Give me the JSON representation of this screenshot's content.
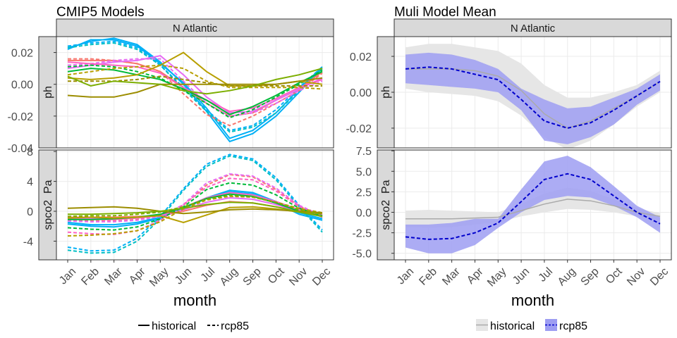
{
  "figure": {
    "left_title": "CMIP5 Models",
    "right_title": "Muli Model Mean",
    "facet_label": "N Atlantic",
    "xlabel": "month",
    "row_labels": [
      "ph",
      "spco2  Pa"
    ],
    "left_legend": [
      {
        "label": "historical",
        "style": "solid"
      },
      {
        "label": "rcp85",
        "style": "dashed"
      }
    ],
    "right_legend": [
      {
        "label": "historical",
        "fill": "#e6e6e6",
        "line": "#aaaaaa"
      },
      {
        "label": "rcp85",
        "fill": "#9d9df2",
        "line": "#0000cc"
      }
    ]
  },
  "chart_data": [
    {
      "type": "line",
      "panel": "CMIP5 Models / N Atlantic / ph",
      "x": [
        "Jan",
        "Feb",
        "Mar",
        "Apr",
        "May",
        "Jun",
        "Jul",
        "Aug",
        "Sep",
        "Oct",
        "Nov",
        "Dec"
      ],
      "ylim": [
        -0.04,
        0.03
      ],
      "yticks": [
        "0.02",
        "0.00",
        "-0.02",
        "-0.04"
      ],
      "ytick_values": [
        0.02,
        0.0,
        -0.02,
        -0.04
      ],
      "grid": true,
      "series": [
        {
          "color": "#00b0f6",
          "style": "solid",
          "values": [
            0.022,
            0.028,
            0.028,
            0.024,
            0.013,
            0.001,
            -0.015,
            -0.034,
            -0.029,
            -0.018,
            -0.003,
            0.011
          ]
        },
        {
          "color": "#00b0f6",
          "style": "solid",
          "values": [
            0.023,
            0.027,
            0.029,
            0.025,
            0.014,
            0.0,
            -0.017,
            -0.036,
            -0.031,
            -0.02,
            -0.005,
            0.01
          ]
        },
        {
          "color": "#00b0f6",
          "style": "dashed",
          "values": [
            0.024,
            0.026,
            0.027,
            0.023,
            0.012,
            -0.002,
            -0.016,
            -0.029,
            -0.026,
            -0.016,
            -0.002,
            0.011
          ]
        },
        {
          "color": "#00bfc4",
          "style": "dashed",
          "values": [
            0.023,
            0.025,
            0.026,
            0.022,
            0.012,
            -0.003,
            -0.017,
            -0.03,
            -0.027,
            -0.018,
            -0.004,
            0.01
          ]
        },
        {
          "color": "#f8766d",
          "style": "solid",
          "values": [
            0.015,
            0.015,
            0.015,
            0.013,
            0.008,
            -0.002,
            -0.012,
            -0.02,
            -0.018,
            -0.01,
            -0.003,
            0.008
          ]
        },
        {
          "color": "#f8766d",
          "style": "dashed",
          "values": [
            0.016,
            0.016,
            0.015,
            0.013,
            0.008,
            -0.006,
            -0.019,
            -0.026,
            -0.02,
            -0.012,
            -0.004,
            0.007
          ]
        },
        {
          "color": "#e76bf3",
          "style": "solid",
          "values": [
            0.01,
            0.012,
            0.014,
            0.015,
            0.018,
            0.006,
            -0.008,
            -0.018,
            -0.017,
            -0.01,
            -0.003,
            0.004
          ]
        },
        {
          "color": "#e76bf3",
          "style": "dashed",
          "values": [
            0.012,
            0.013,
            0.015,
            0.016,
            0.016,
            0.002,
            -0.012,
            -0.02,
            -0.018,
            -0.012,
            -0.004,
            0.002
          ]
        },
        {
          "color": "#ff61c3",
          "style": "solid",
          "values": [
            0.014,
            0.013,
            0.012,
            0.011,
            0.007,
            -0.002,
            -0.01,
            -0.017,
            -0.015,
            -0.009,
            -0.002,
            0.003
          ]
        },
        {
          "color": "#00ba38",
          "style": "solid",
          "values": [
            0.008,
            0.01,
            0.009,
            0.006,
            0.003,
            -0.003,
            -0.01,
            -0.019,
            -0.014,
            -0.007,
            0.001,
            0.008
          ]
        },
        {
          "color": "#00ba38",
          "style": "dashed",
          "values": [
            0.011,
            0.012,
            0.011,
            0.008,
            0.004,
            -0.004,
            -0.012,
            -0.021,
            -0.016,
            -0.008,
            0.0,
            0.009
          ]
        },
        {
          "color": "#b79f00",
          "style": "solid",
          "values": [
            0.004,
            0.003,
            0.004,
            0.006,
            0.012,
            0.02,
            0.008,
            -0.001,
            -0.001,
            0.0,
            0.002,
            0.0
          ]
        },
        {
          "color": "#b79f00",
          "style": "dashed",
          "values": [
            0.006,
            0.008,
            0.01,
            0.011,
            0.012,
            0.01,
            0.002,
            -0.002,
            -0.002,
            -0.002,
            -0.002,
            -0.003
          ]
        },
        {
          "color": "#9c8d00",
          "style": "solid",
          "values": [
            -0.007,
            -0.008,
            -0.008,
            -0.005,
            0.0,
            0.0,
            0.0,
            0.0,
            0.0,
            0.0,
            0.002,
            0.004
          ]
        },
        {
          "color": "#9c8d00",
          "style": "dashed",
          "values": [
            0.002,
            0.002,
            0.002,
            0.003,
            0.005,
            0.003,
            0.001,
            -0.001,
            -0.001,
            -0.001,
            -0.001,
            -0.001
          ]
        },
        {
          "color": "#7cae00",
          "style": "solid",
          "values": [
            0.005,
            -0.001,
            0.002,
            0.001,
            0.0,
            -0.004,
            -0.006,
            -0.004,
            -0.001,
            0.003,
            0.006,
            0.01
          ]
        }
      ]
    },
    {
      "type": "line",
      "panel": "CMIP5 Models / N Atlantic / spco2 Pa",
      "x": [
        "Jan",
        "Feb",
        "Mar",
        "Apr",
        "May",
        "Jun",
        "Jul",
        "Aug",
        "Sep",
        "Oct",
        "Nov",
        "Dec"
      ],
      "ylim": [
        -6.5,
        8.2
      ],
      "yticks": [
        "8",
        "4",
        "0",
        "-4"
      ],
      "ytick_values": [
        8,
        4,
        0,
        -4
      ],
      "grid": true,
      "series": [
        {
          "color": "#00b0f6",
          "style": "solid",
          "values": [
            -1.5,
            -1.8,
            -1.8,
            -1.5,
            -0.8,
            0.5,
            1.8,
            2.8,
            2.5,
            1.3,
            -0.2,
            -1.0
          ]
        },
        {
          "color": "#00b0f6",
          "style": "solid",
          "values": [
            -1.7,
            -2.0,
            -2.1,
            -1.7,
            -0.9,
            0.4,
            1.7,
            2.6,
            2.3,
            1.1,
            -0.4,
            -1.2
          ]
        },
        {
          "color": "#00bfc4",
          "style": "dashed",
          "values": [
            -5.2,
            -5.6,
            -5.5,
            -4.0,
            -1.0,
            2.8,
            6.0,
            7.4,
            6.8,
            4.2,
            0.6,
            -2.8
          ]
        },
        {
          "color": "#00b0f6",
          "style": "dashed",
          "values": [
            -4.8,
            -5.3,
            -5.2,
            -3.6,
            -0.7,
            3.0,
            6.3,
            7.6,
            7.0,
            4.5,
            0.8,
            -2.5
          ]
        },
        {
          "color": "#f8766d",
          "style": "solid",
          "values": [
            -0.8,
            -0.8,
            -0.8,
            -0.7,
            -0.6,
            0.0,
            0.8,
            1.3,
            1.1,
            0.6,
            0.0,
            -0.5
          ]
        },
        {
          "color": "#f8766d",
          "style": "dashed",
          "values": [
            -1.2,
            -1.3,
            -1.3,
            -1.1,
            -0.6,
            0.8,
            3.5,
            4.9,
            4.6,
            2.9,
            0.7,
            -0.7
          ]
        },
        {
          "color": "#e76bf3",
          "style": "solid",
          "values": [
            -1.0,
            -1.0,
            -1.0,
            -0.9,
            -0.6,
            0.2,
            1.2,
            1.8,
            1.6,
            0.9,
            0.0,
            -0.6
          ]
        },
        {
          "color": "#e76bf3",
          "style": "dashed",
          "values": [
            -1.3,
            -1.4,
            -1.4,
            -1.2,
            -0.7,
            0.9,
            3.8,
            5.0,
            4.7,
            3.1,
            0.8,
            -0.6
          ]
        },
        {
          "color": "#ff61c3",
          "style": "solid",
          "values": [
            -1.1,
            -1.1,
            -1.1,
            -0.9,
            -0.5,
            0.5,
            1.8,
            2.5,
            2.2,
            1.3,
            0.2,
            -0.5
          ]
        },
        {
          "color": "#ff61c3",
          "style": "dashed",
          "values": [
            -2.8,
            -3.0,
            -3.1,
            -2.6,
            -1.2,
            0.9,
            3.2,
            4.4,
            4.2,
            2.7,
            0.6,
            -0.8
          ]
        },
        {
          "color": "#00ba38",
          "style": "solid",
          "values": [
            -1.1,
            -1.1,
            -1.0,
            -0.8,
            -0.4,
            0.5,
            1.7,
            2.3,
            2.0,
            1.1,
            0.0,
            -0.7
          ]
        },
        {
          "color": "#00ba38",
          "style": "dashed",
          "values": [
            -2.2,
            -2.4,
            -2.5,
            -2.1,
            -1.0,
            0.6,
            2.9,
            3.8,
            3.5,
            2.2,
            0.4,
            -0.6
          ]
        },
        {
          "color": "#b79f00",
          "style": "solid",
          "values": [
            -0.9,
            -0.8,
            -0.9,
            -0.8,
            -0.6,
            -1.5,
            -0.5,
            0.5,
            0.6,
            0.3,
            -0.1,
            -0.3
          ]
        },
        {
          "color": "#b79f00",
          "style": "dashed",
          "values": [
            -3.3,
            -3.2,
            -3.0,
            -2.6,
            -1.4,
            0.3,
            1.5,
            2.0,
            1.9,
            1.2,
            0.4,
            -0.2
          ]
        },
        {
          "color": "#9c8d00",
          "style": "solid",
          "values": [
            0.4,
            0.5,
            0.6,
            0.4,
            0.0,
            -0.3,
            -0.1,
            0.2,
            0.3,
            0.2,
            0.0,
            -0.2
          ]
        },
        {
          "color": "#7cae00",
          "style": "solid",
          "values": [
            -0.4,
            -0.4,
            -0.3,
            -0.2,
            0.0,
            0.4,
            0.9,
            1.2,
            1.1,
            0.6,
            -0.1,
            -0.7
          ]
        },
        {
          "color": "#7cae00",
          "style": "dashed",
          "values": [
            -0.7,
            -0.6,
            -0.6,
            -0.4,
            -0.1,
            0.6,
            1.6,
            2.1,
            1.9,
            1.2,
            0.2,
            -0.4
          ]
        }
      ]
    },
    {
      "type": "area",
      "panel": "Muli Model Mean / N Atlantic / ph",
      "x": [
        "Jan",
        "Feb",
        "Mar",
        "Apr",
        "May",
        "Jun",
        "Jul",
        "Aug",
        "Sep",
        "Oct",
        "Nov",
        "Dec"
      ],
      "ylim": [
        -0.031,
        0.031
      ],
      "yticks": [
        "0.02",
        "0.00",
        "-0.02"
      ],
      "ytick_values": [
        0.02,
        0.0,
        -0.02
      ],
      "grid": true,
      "series": [
        {
          "name": "historical",
          "style": "solid",
          "line": "#aaaaaa",
          "fill": "#e6e6e6",
          "mean": [
            0.013,
            0.013,
            0.013,
            0.012,
            0.009,
            0.001,
            -0.012,
            -0.02,
            -0.016,
            -0.009,
            -0.002,
            0.006
          ],
          "upper": [
            0.025,
            0.027,
            0.027,
            0.025,
            0.023,
            0.016,
            0.004,
            -0.003,
            -0.003,
            0.0,
            0.004,
            0.012
          ],
          "lower": [
            0.002,
            0.0,
            -0.001,
            -0.002,
            -0.005,
            -0.013,
            -0.025,
            -0.032,
            -0.027,
            -0.018,
            -0.008,
            0.0
          ]
        },
        {
          "name": "rcp85",
          "style": "dashed",
          "line": "#0000cc",
          "fill": "#9d9df2",
          "mean": [
            0.013,
            0.014,
            0.013,
            0.01,
            0.007,
            -0.004,
            -0.016,
            -0.02,
            -0.017,
            -0.01,
            -0.002,
            0.006
          ],
          "upper": [
            0.021,
            0.022,
            0.021,
            0.018,
            0.013,
            0.002,
            -0.004,
            -0.009,
            -0.008,
            -0.003,
            0.002,
            0.01
          ],
          "lower": [
            0.005,
            0.004,
            0.003,
            0.002,
            0.0,
            -0.01,
            -0.027,
            -0.029,
            -0.025,
            -0.018,
            -0.007,
            0.001
          ]
        }
      ]
    },
    {
      "type": "area",
      "panel": "Muli Model Mean / N Atlantic / spco2 Pa",
      "x": [
        "Jan",
        "Feb",
        "Mar",
        "Apr",
        "May",
        "Jun",
        "Jul",
        "Aug",
        "Sep",
        "Oct",
        "Nov",
        "Dec"
      ],
      "ylim": [
        -5.8,
        7.6
      ],
      "yticks": [
        "7.5",
        "5.0",
        "2.5",
        "0.0",
        "-2.5",
        "-5.0"
      ],
      "ytick_values": [
        7.5,
        5.0,
        2.5,
        0.0,
        -2.5,
        -5.0
      ],
      "grid": true,
      "series": [
        {
          "name": "historical",
          "style": "solid",
          "line": "#aaaaaa",
          "fill": "#e6e6e6",
          "mean": [
            -0.8,
            -0.8,
            -0.8,
            -0.7,
            -0.6,
            0.2,
            1.0,
            1.6,
            1.4,
            0.8,
            0.0,
            -0.5
          ],
          "upper": [
            0.2,
            0.3,
            0.2,
            0.1,
            0.0,
            1.0,
            2.3,
            3.0,
            2.6,
            1.6,
            0.5,
            -0.1
          ],
          "lower": [
            -1.8,
            -1.9,
            -1.8,
            -1.5,
            -1.2,
            -0.5,
            0.0,
            0.4,
            0.3,
            0.0,
            -0.5,
            -1.0
          ]
        },
        {
          "name": "rcp85",
          "style": "dashed",
          "line": "#0000cc",
          "fill": "#9d9df2",
          "mean": [
            -3.0,
            -3.3,
            -3.2,
            -2.5,
            -1.3,
            1.3,
            4.0,
            4.7,
            4.0,
            2.0,
            0.0,
            -1.4
          ],
          "upper": [
            -1.5,
            -1.5,
            -1.3,
            -0.8,
            -0.8,
            2.8,
            6.2,
            6.9,
            5.5,
            3.2,
            0.8,
            -0.6
          ],
          "lower": [
            -4.3,
            -5.0,
            -5.0,
            -4.0,
            -1.9,
            0.0,
            1.5,
            2.0,
            1.8,
            0.8,
            -0.6,
            -2.5
          ]
        }
      ]
    }
  ]
}
